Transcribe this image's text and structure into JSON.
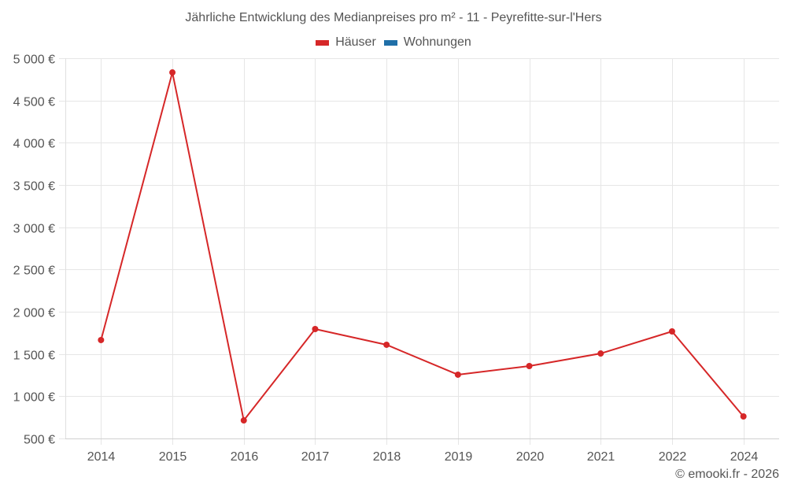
{
  "title": "Jährliche Entwicklung des Medianpreises pro m² - 11 - Peyrefitte-sur-l'Hers",
  "legend": [
    {
      "label": "Häuser",
      "color": "#d62728"
    },
    {
      "label": "Wohnungen",
      "color": "#1f6fa8"
    }
  ],
  "footer": "© emooki.fr - 2026",
  "chart_data": {
    "type": "line",
    "title": "Jährliche Entwicklung des Medianpreises pro m² - 11 - Peyrefitte-sur-l'Hers",
    "categories": [
      "2014",
      "2015",
      "2016",
      "2017",
      "2018",
      "2019",
      "2020",
      "2021",
      "2022",
      "2024"
    ],
    "series": [
      {
        "name": "Häuser",
        "color": "#d62728",
        "values": [
          1665,
          4832,
          714,
          1795,
          1609,
          1255,
          1357,
          1506,
          1767,
          761
        ]
      },
      {
        "name": "Wohnungen",
        "color": "#1f6fa8",
        "values": []
      }
    ],
    "xlabel": "",
    "ylabel": "",
    "ylim": [
      500,
      5000
    ],
    "yticks": [
      500,
      1000,
      1500,
      2000,
      2500,
      3000,
      3500,
      4000,
      4500,
      5000
    ],
    "ytick_labels": [
      "500 €",
      "1 000 €",
      "1 500 €",
      "2 000 €",
      "2 500 €",
      "3 000 €",
      "3 500 €",
      "4 000 €",
      "4 500 €",
      "5 000 €"
    ],
    "grid": true,
    "legend_position": "top"
  }
}
